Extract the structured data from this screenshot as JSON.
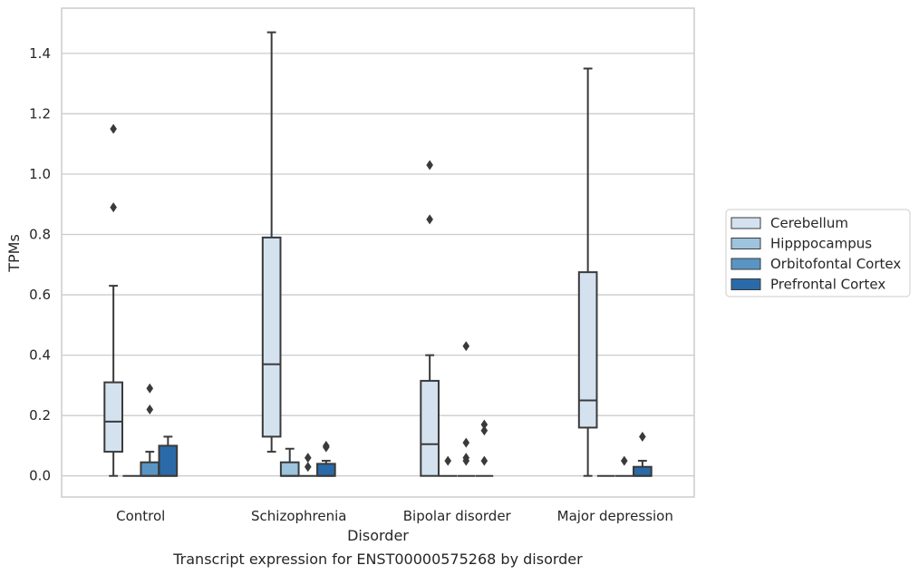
{
  "chart_data": {
    "type": "box",
    "caption": "Transcript expression for ENST00000575268 by disorder",
    "xlabel": "Disorder",
    "ylabel": "TPMs",
    "ylim": [
      -0.07,
      1.55
    ],
    "yticks": [
      0.0,
      0.2,
      0.4,
      0.6,
      0.8,
      1.0,
      1.2,
      1.4
    ],
    "ytick_labels": [
      "0.0",
      "0.2",
      "0.4",
      "0.6",
      "0.8",
      "1.0",
      "1.2",
      "1.4"
    ],
    "grid": "horizontal",
    "legend_position": "right",
    "categories": [
      "Control",
      "Schizophrenia",
      "Bipolar disorder",
      "Major depression"
    ],
    "series": [
      {
        "name": "Cerebellum",
        "color": "#d4e2f0",
        "boxes": [
          {
            "whislo": 0.0,
            "q1": 0.08,
            "med": 0.18,
            "q3": 0.31,
            "whishi": 0.63,
            "fliers": [
              0.89,
              1.15
            ]
          },
          {
            "whislo": 0.08,
            "q1": 0.13,
            "med": 0.37,
            "q3": 0.79,
            "whishi": 1.47,
            "fliers": []
          },
          {
            "whislo": 0.0,
            "q1": 0.0,
            "med": 0.105,
            "q3": 0.315,
            "whishi": 0.4,
            "fliers": [
              0.85,
              1.03
            ]
          },
          {
            "whislo": 0.0,
            "q1": 0.16,
            "med": 0.25,
            "q3": 0.675,
            "whishi": 1.35,
            "fliers": []
          }
        ]
      },
      {
        "name": "Hipppocampus",
        "color": "#9dc3dd",
        "boxes": [
          {
            "whislo": 0.0,
            "q1": 0.0,
            "med": 0.0,
            "q3": 0.0,
            "whishi": 0.0,
            "fliers": []
          },
          {
            "whislo": 0.0,
            "q1": 0.0,
            "med": 0.0,
            "q3": 0.045,
            "whishi": 0.09,
            "fliers": []
          },
          {
            "whislo": 0.0,
            "q1": 0.0,
            "med": 0.0,
            "q3": 0.0,
            "whishi": 0.0,
            "fliers": [
              0.05
            ]
          },
          {
            "whislo": 0.0,
            "q1": 0.0,
            "med": 0.0,
            "q3": 0.0,
            "whishi": 0.0,
            "fliers": []
          }
        ]
      },
      {
        "name": "Orbitofontal Cortex",
        "color": "#5895c5",
        "boxes": [
          {
            "whislo": 0.0,
            "q1": 0.0,
            "med": 0.0,
            "q3": 0.045,
            "whishi": 0.08,
            "fliers": [
              0.22,
              0.29
            ]
          },
          {
            "whislo": 0.0,
            "q1": 0.0,
            "med": 0.0,
            "q3": 0.0,
            "whishi": 0.0,
            "fliers": [
              0.03,
              0.06
            ]
          },
          {
            "whislo": 0.0,
            "q1": 0.0,
            "med": 0.0,
            "q3": 0.0,
            "whishi": 0.0,
            "fliers": [
              0.05,
              0.06,
              0.11,
              0.43
            ]
          },
          {
            "whislo": 0.0,
            "q1": 0.0,
            "med": 0.0,
            "q3": 0.0,
            "whishi": 0.0,
            "fliers": [
              0.05
            ]
          }
        ]
      },
      {
        "name": "Prefrontal Cortex",
        "color": "#2b6aa8",
        "boxes": [
          {
            "whislo": 0.0,
            "q1": 0.0,
            "med": 0.0,
            "q3": 0.1,
            "whishi": 0.13,
            "fliers": []
          },
          {
            "whislo": 0.0,
            "q1": 0.0,
            "med": 0.0,
            "q3": 0.04,
            "whishi": 0.05,
            "fliers": [
              0.095,
              0.1
            ]
          },
          {
            "whislo": 0.0,
            "q1": 0.0,
            "med": 0.0,
            "q3": 0.0,
            "whishi": 0.0,
            "fliers": [
              0.05,
              0.15,
              0.17
            ]
          },
          {
            "whislo": 0.0,
            "q1": 0.0,
            "med": 0.0,
            "q3": 0.03,
            "whishi": 0.05,
            "fliers": [
              0.13
            ]
          }
        ]
      }
    ]
  },
  "colors": {
    "line": "#3a3a3a",
    "grid": "#cccccc",
    "frame": "#cccccc"
  }
}
